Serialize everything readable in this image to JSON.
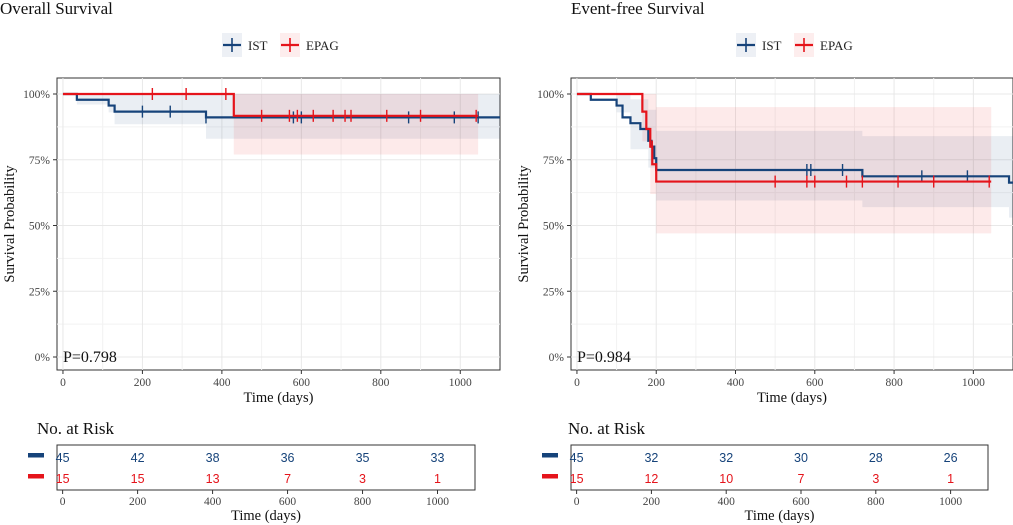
{
  "colors": {
    "ist": "#16437A",
    "epag": "#E5141B",
    "grid": "#e8e8e8",
    "frame": "#333333",
    "ist_band": "#16437A",
    "epag_band": "#E5141B"
  },
  "legend": {
    "items": [
      {
        "key": "ist",
        "label": "IST"
      },
      {
        "key": "epag",
        "label": "EPAG"
      }
    ]
  },
  "chart_data": [
    {
      "type": "line",
      "subtype": "kaplan-meier",
      "title": "Overall Survival",
      "xlabel": "Time (days)",
      "ylabel": "Survival Probability",
      "xlim": [
        -15,
        1100
      ],
      "ylim": [
        0,
        1
      ],
      "xticks": [
        0,
        200,
        400,
        600,
        800,
        1000
      ],
      "yticks": [
        0,
        0.25,
        0.5,
        0.75,
        1.0
      ],
      "ytick_labels": [
        "0%",
        "25%",
        "50%",
        "75%",
        "100%"
      ],
      "pvalue": "P=0.798",
      "series": [
        {
          "name": "IST",
          "key": "ist",
          "steps": [
            [
              0,
              1.0
            ],
            [
              35,
              0.978
            ],
            [
              115,
              0.956
            ],
            [
              130,
              0.933
            ],
            [
              360,
              0.911
            ],
            [
              1100,
              0.911
            ]
          ],
          "ci": [
            [
              0,
              1.0,
              1.0
            ],
            [
              35,
              0.96,
              1.0
            ],
            [
              115,
              0.93,
              1.0
            ],
            [
              130,
              0.885,
              1.0
            ],
            [
              360,
              0.83,
              1.0
            ],
            [
              1100,
              0.83,
              1.0
            ]
          ],
          "censors": [
            [
              200,
              0.933
            ],
            [
              270,
              0.933
            ],
            [
              360,
              0.911
            ],
            [
              580,
              0.911
            ],
            [
              600,
              0.911
            ],
            [
              870,
              0.911
            ],
            [
              985,
              0.911
            ],
            [
              1045,
              0.911
            ]
          ]
        },
        {
          "name": "EPAG",
          "key": "epag",
          "steps": [
            [
              0,
              1.0
            ],
            [
              430,
              0.917
            ],
            [
              1045,
              0.917
            ]
          ],
          "ci": [
            [
              0,
              1.0,
              1.0
            ],
            [
              430,
              0.77,
              1.0
            ],
            [
              1045,
              0.77,
              1.0
            ]
          ],
          "censors": [
            [
              225,
              1.0
            ],
            [
              310,
              1.0
            ],
            [
              410,
              1.0
            ],
            [
              500,
              0.917
            ],
            [
              570,
              0.917
            ],
            [
              590,
              0.917
            ],
            [
              630,
              0.917
            ],
            [
              680,
              0.917
            ],
            [
              710,
              0.917
            ],
            [
              725,
              0.917
            ],
            [
              815,
              0.917
            ],
            [
              900,
              0.917
            ],
            [
              1040,
              0.917
            ]
          ]
        }
      ],
      "risk_table": {
        "title": "No. at Risk",
        "xlabel": "Time (days)",
        "times": [
          0,
          200,
          400,
          600,
          800,
          1000
        ],
        "rows": [
          {
            "key": "ist",
            "values": [
              "45",
              "42",
              "38",
              "36",
              "35",
              "33"
            ]
          },
          {
            "key": "epag",
            "values": [
              "15",
              "15",
              "13",
              "7",
              "3",
              "1"
            ]
          }
        ]
      }
    },
    {
      "type": "line",
      "subtype": "kaplan-meier",
      "title": "Event-free Survival",
      "xlabel": "Time (days)",
      "ylabel": "Survival Probability",
      "xlim": [
        -15,
        1100
      ],
      "ylim": [
        0,
        1
      ],
      "xticks": [
        0,
        200,
        400,
        600,
        800,
        1000
      ],
      "yticks": [
        0,
        0.25,
        0.5,
        0.75,
        1.0
      ],
      "ytick_labels": [
        "0%",
        "25%",
        "50%",
        "75%",
        "100%"
      ],
      "pvalue": "P=0.984",
      "series": [
        {
          "name": "IST",
          "key": "ist",
          "steps": [
            [
              0,
              1.0
            ],
            [
              35,
              0.978
            ],
            [
              100,
              0.956
            ],
            [
              115,
              0.911
            ],
            [
              135,
              0.889
            ],
            [
              160,
              0.867
            ],
            [
              180,
              0.822
            ],
            [
              188,
              0.8
            ],
            [
              195,
              0.756
            ],
            [
              200,
              0.711
            ],
            [
              720,
              0.687
            ],
            [
              1090,
              0.663
            ],
            [
              1100,
              0.663
            ]
          ],
          "ci": [
            [
              0,
              1.0,
              1.0
            ],
            [
              100,
              0.93,
              1.0
            ],
            [
              135,
              0.79,
              0.98
            ],
            [
              180,
              0.72,
              0.94
            ],
            [
              200,
              0.595,
              0.86
            ],
            [
              720,
              0.57,
              0.84
            ],
            [
              1090,
              0.53,
              0.84
            ],
            [
              1100,
              0.53,
              0.84
            ]
          ],
          "censors": [
            [
              580,
              0.711
            ],
            [
              590,
              0.711
            ],
            [
              670,
              0.711
            ],
            [
              870,
              0.687
            ],
            [
              985,
              0.687
            ]
          ]
        },
        {
          "name": "EPAG",
          "key": "epag",
          "steps": [
            [
              0,
              1.0
            ],
            [
              165,
              0.933
            ],
            [
              175,
              0.867
            ],
            [
              185,
              0.8
            ],
            [
              190,
              0.733
            ],
            [
              200,
              0.667
            ],
            [
              1045,
              0.667
            ]
          ],
          "ci": [
            [
              0,
              1.0,
              1.0
            ],
            [
              165,
              0.82,
              1.0
            ],
            [
              185,
              0.62,
              1.0
            ],
            [
              200,
              0.47,
              0.95
            ],
            [
              1045,
              0.47,
              0.95
            ]
          ],
          "censors": [
            [
              190,
              0.8
            ],
            [
              500,
              0.667
            ],
            [
              580,
              0.667
            ],
            [
              600,
              0.667
            ],
            [
              680,
              0.667
            ],
            [
              720,
              0.667
            ],
            [
              810,
              0.667
            ],
            [
              900,
              0.667
            ],
            [
              1040,
              0.667
            ]
          ]
        }
      ],
      "risk_table": {
        "title": "No. at Risk",
        "xlabel": "Time (days)",
        "times": [
          0,
          200,
          400,
          600,
          800,
          1000
        ],
        "rows": [
          {
            "key": "ist",
            "values": [
              "45",
              "32",
              "32",
              "30",
              "28",
              "26"
            ]
          },
          {
            "key": "epag",
            "values": [
              "15",
              "12",
              "10",
              "7",
              "3",
              "1"
            ]
          }
        ]
      }
    }
  ]
}
